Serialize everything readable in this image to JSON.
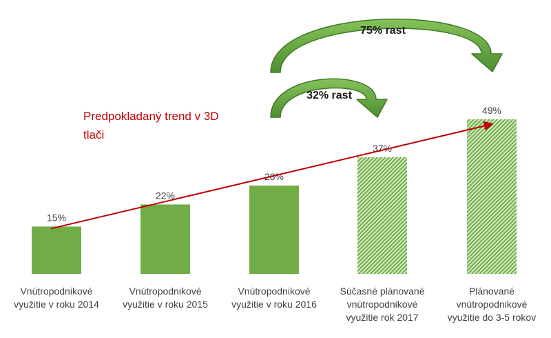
{
  "chart_data": {
    "type": "bar",
    "categories": [
      [
        "Vnútropodnikové",
        "využitie v roku 2014"
      ],
      [
        "Vnútropodnikové",
        "využitie v roku 2015"
      ],
      [
        "Vnútropodnikové",
        "využitie v roku 2016"
      ],
      [
        "Súčasné plánované",
        "vnútropodnikové",
        "využitie rok 2017"
      ],
      [
        "Plánované",
        "vnútropodnikové",
        "využitie do 3-5 rokov"
      ]
    ],
    "values": [
      15,
      22,
      28,
      37,
      49
    ],
    "value_labels": [
      "15%",
      "22%",
      "28%",
      "37%",
      "49%"
    ],
    "bar_styles": [
      "solid",
      "solid",
      "solid",
      "hatched",
      "hatched"
    ],
    "ylim": [
      0,
      60
    ],
    "grid": false,
    "legend": "none",
    "trend": {
      "label_lines": [
        "Predpokladaný trend v 3D",
        "tlači"
      ],
      "from_value": 15,
      "to_value": 49
    },
    "growth_arrows": [
      {
        "label": "32% rast",
        "from_index": 2,
        "to_index": 3
      },
      {
        "label": "75% rast",
        "from_index": 2,
        "to_index": 4
      }
    ],
    "colors": {
      "bar": "#70ad47",
      "hatch_light": "#d7ebc8",
      "trend": "#c00000",
      "arrow_fill": "#6fae45",
      "arrow_stroke": "#3f7a26",
      "text": "#404040"
    }
  }
}
